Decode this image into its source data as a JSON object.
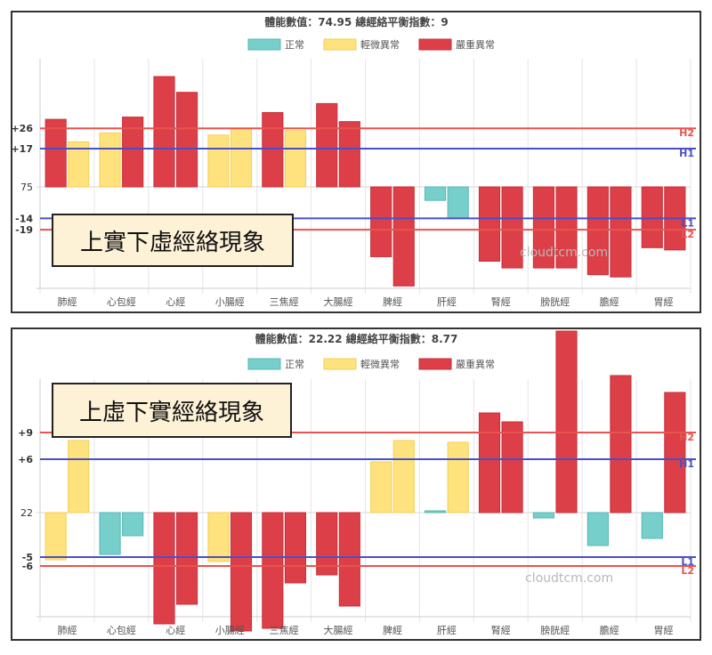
{
  "chart_data": [
    {
      "type": "bar",
      "title": "體能數值：74.95 總經絡平衡指數：9",
      "categories": [
        "肺經",
        "心包經",
        "心經",
        "小腸經",
        "三焦經",
        "大腸經",
        "脾經",
        "肝經",
        "腎經",
        "膀胱經",
        "膽經",
        "胃經"
      ],
      "series": [
        {
          "name": "left",
          "values": [
            30,
            24,
            49,
            23,
            33,
            37,
            -31,
            -6,
            -33,
            -36,
            -39,
            -27
          ],
          "status": [
            "severe",
            "mild",
            "severe",
            "mild",
            "severe",
            "severe",
            "severe",
            "normal",
            "severe",
            "severe",
            "severe",
            "severe"
          ]
        },
        {
          "name": "right",
          "values": [
            20,
            31,
            42,
            26,
            25,
            29,
            -44,
            -14,
            -36,
            -36,
            -40,
            -28
          ],
          "status": [
            "mild",
            "severe",
            "severe",
            "mild",
            "mild",
            "severe",
            "severe",
            "normal",
            "severe",
            "severe",
            "severe",
            "severe"
          ]
        }
      ],
      "baseline_label": "75",
      "ylim": [
        -45,
        55
      ],
      "reference_lines": [
        {
          "label": "H2",
          "tick": "+26",
          "value": 26,
          "color": "#e8544f"
        },
        {
          "label": "H1",
          "tick": "+17",
          "value": 17,
          "color": "#4a4fc7"
        },
        {
          "label": "L1",
          "tick": "-14",
          "value": -14,
          "color": "#4a4fc7"
        },
        {
          "label": "L2",
          "tick": "-19",
          "value": -19,
          "color": "#e8544f"
        }
      ],
      "callout": "上實下虛經絡現象"
    },
    {
      "type": "bar",
      "title": "體能數值：22.22 總經絡平衡指數：8.77",
      "categories": [
        "肺經",
        "心包經",
        "心經",
        "小腸經",
        "三焦經",
        "大腸經",
        "脾經",
        "肝經",
        "腎經",
        "膀胱經",
        "膽經",
        "胃經"
      ],
      "series": [
        {
          "name": "left",
          "values": [
            -5.3,
            -4.7,
            -12.5,
            -5.5,
            -13,
            -7,
            5.7,
            0.2,
            11.2,
            -0.6,
            -3.7,
            -2.9
          ],
          "status": [
            "mild",
            "normal",
            "severe",
            "mild",
            "severe",
            "severe",
            "mild",
            "normal",
            "severe",
            "normal",
            "normal",
            "normal"
          ]
        },
        {
          "name": "right",
          "values": [
            8.1,
            -2.6,
            -10.3,
            -13.3,
            -7.9,
            -10.5,
            8.1,
            7.9,
            10.2,
            20.4,
            15.4,
            13.5
          ],
          "status": [
            "mild",
            "normal",
            "severe",
            "severe",
            "severe",
            "severe",
            "mild",
            "mild",
            "severe",
            "severe",
            "severe",
            "severe"
          ]
        }
      ],
      "baseline_label": "22",
      "ylim": [
        -16,
        20.5
      ],
      "reference_lines": [
        {
          "label": "H2",
          "tick": "+9",
          "value": 9,
          "color": "#e8544f"
        },
        {
          "label": "H1",
          "tick": "+6",
          "value": 6,
          "color": "#4a4fc7"
        },
        {
          "label": "L1",
          "tick": "-5",
          "value": -5,
          "color": "#4a4fc7"
        },
        {
          "label": "L2",
          "tick": "-6",
          "value": -6,
          "color": "#e8544f"
        }
      ],
      "callout": "上虛下實經絡現象"
    }
  ],
  "legend": [
    {
      "key": "normal",
      "label": "正常",
      "color": "#76cfcb"
    },
    {
      "key": "mild",
      "label": "輕微異常",
      "color": "#fde27d"
    },
    {
      "key": "severe",
      "label": "嚴重異常",
      "color": "#dc3f47"
    }
  ],
  "bar_stroke": {
    "normal": "#56b8b3",
    "mild": "#f5cf55",
    "severe": "#c92f38"
  },
  "watermark": "cloudtcm.com"
}
